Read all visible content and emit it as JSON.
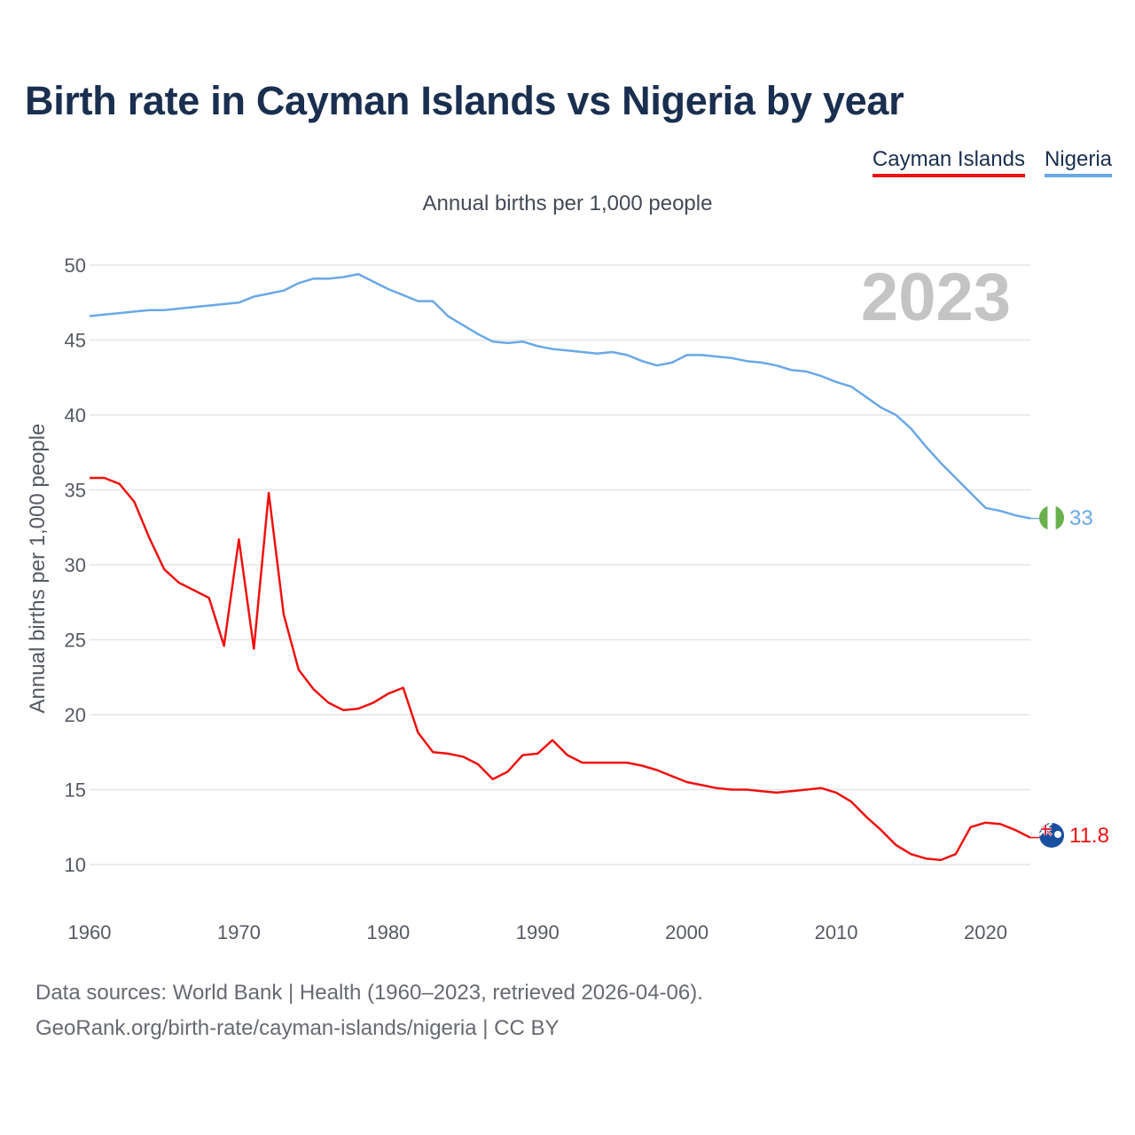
{
  "title": "Birth rate in Cayman Islands vs Nigeria by year",
  "subtitle": "Annual births per 1,000 people",
  "year_badge": "2023",
  "legend": {
    "cayman": "Cayman Islands",
    "nigeria": "Nigeria"
  },
  "end_labels": {
    "cayman": "11.8",
    "nigeria": "33"
  },
  "sources": {
    "line1": "Data sources: World Bank | Health (1960–2023, retrieved 2026-04-06).",
    "line2": "GeoRank.org/birth-rate/cayman-islands/nigeria | CC BY"
  },
  "colors": {
    "cayman": "#ee1111",
    "nigeria": "#6aa8e6",
    "grid": "#e6e6e6"
  },
  "chart_data": {
    "type": "line",
    "title": "Birth rate in Cayman Islands vs Nigeria by year",
    "xlabel": "",
    "ylabel": "Annual births per 1,000 people",
    "xlim": [
      1960,
      2023
    ],
    "ylim": [
      10,
      50
    ],
    "x_ticks": [
      1960,
      1970,
      1980,
      1990,
      2000,
      2010,
      2020
    ],
    "y_ticks": [
      10,
      15,
      20,
      25,
      30,
      35,
      40,
      45,
      50
    ],
    "x": [
      1960,
      1961,
      1962,
      1963,
      1964,
      1965,
      1966,
      1967,
      1968,
      1969,
      1970,
      1971,
      1972,
      1973,
      1974,
      1975,
      1976,
      1977,
      1978,
      1979,
      1980,
      1981,
      1982,
      1983,
      1984,
      1985,
      1986,
      1987,
      1988,
      1989,
      1990,
      1991,
      1992,
      1993,
      1994,
      1995,
      1996,
      1997,
      1998,
      1999,
      2000,
      2001,
      2002,
      2003,
      2004,
      2005,
      2006,
      2007,
      2008,
      2009,
      2010,
      2011,
      2012,
      2013,
      2014,
      2015,
      2016,
      2017,
      2018,
      2019,
      2020,
      2021,
      2022,
      2023
    ],
    "series": [
      {
        "name": "Nigeria",
        "color": "#6aa8e6",
        "values": [
          46.6,
          46.7,
          46.8,
          46.9,
          47.0,
          47.0,
          47.1,
          47.2,
          47.3,
          47.4,
          47.5,
          47.9,
          48.1,
          48.3,
          48.8,
          49.1,
          49.1,
          49.2,
          49.4,
          48.9,
          48.4,
          48.0,
          47.6,
          47.6,
          46.6,
          46.0,
          45.4,
          44.9,
          44.8,
          44.9,
          44.6,
          44.4,
          44.3,
          44.2,
          44.1,
          44.2,
          44.0,
          43.6,
          43.3,
          43.5,
          44.0,
          44.0,
          43.9,
          43.8,
          43.6,
          43.5,
          43.3,
          43.0,
          42.9,
          42.6,
          42.2,
          41.9,
          41.2,
          40.5,
          40.0,
          39.1,
          37.9,
          36.8,
          35.8,
          34.8,
          33.8,
          33.6,
          33.3,
          33.1
        ]
      },
      {
        "name": "Cayman Islands",
        "color": "#ee1111",
        "values": [
          35.8,
          35.8,
          35.4,
          34.2,
          31.8,
          29.7,
          28.8,
          28.3,
          27.8,
          24.6,
          31.7,
          24.4,
          34.8,
          26.7,
          23.0,
          21.7,
          20.8,
          20.3,
          20.4,
          20.8,
          21.4,
          21.8,
          18.8,
          17.5,
          17.4,
          17.2,
          16.7,
          15.7,
          16.2,
          17.3,
          17.4,
          18.3,
          17.3,
          16.8,
          16.8,
          16.8,
          16.8,
          16.6,
          16.3,
          15.9,
          15.5,
          15.3,
          15.1,
          15.0,
          15.0,
          14.9,
          14.8,
          14.9,
          15.0,
          15.1,
          14.8,
          14.2,
          13.2,
          12.3,
          11.3,
          10.7,
          10.4,
          10.3,
          10.7,
          12.5,
          12.8,
          12.7,
          12.3,
          11.8
        ]
      }
    ],
    "end_labels": {
      "Nigeria": "33",
      "Cayman Islands": "11.8"
    }
  }
}
